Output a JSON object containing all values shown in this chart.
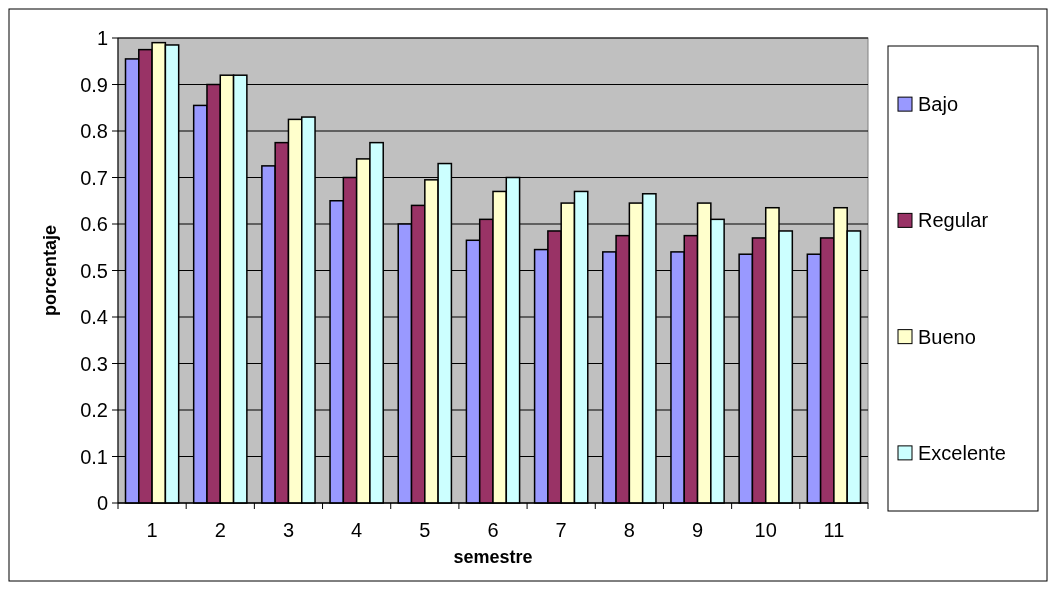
{
  "chart_data": {
    "type": "bar",
    "xlabel": "semestre",
    "ylabel": "porcentaje",
    "categories": [
      "1",
      "2",
      "3",
      "4",
      "5",
      "6",
      "7",
      "8",
      "9",
      "10",
      "11"
    ],
    "series": [
      {
        "name": "Bajo",
        "color": "#9999ff",
        "values": [
          0.955,
          0.855,
          0.725,
          0.65,
          0.6,
          0.565,
          0.545,
          0.54,
          0.54,
          0.535,
          0.535
        ]
      },
      {
        "name": "Regular",
        "color": "#993366",
        "values": [
          0.975,
          0.9,
          0.775,
          0.7,
          0.64,
          0.61,
          0.585,
          0.575,
          0.575,
          0.57,
          0.57
        ]
      },
      {
        "name": "Bueno",
        "color": "#ffffcc",
        "values": [
          0.99,
          0.92,
          0.825,
          0.74,
          0.695,
          0.67,
          0.645,
          0.645,
          0.645,
          0.635,
          0.635
        ]
      },
      {
        "name": "Excelente",
        "color": "#ccffff",
        "values": [
          0.985,
          0.92,
          0.83,
          0.775,
          0.73,
          0.7,
          0.67,
          0.665,
          0.61,
          0.585,
          0.585
        ]
      }
    ],
    "ylim": [
      0,
      1
    ],
    "yticks": [
      0,
      0.1,
      0.2,
      0.3,
      0.4,
      0.5,
      0.6,
      0.7,
      0.8,
      0.9,
      1
    ],
    "grid": "y",
    "legend": "right"
  }
}
